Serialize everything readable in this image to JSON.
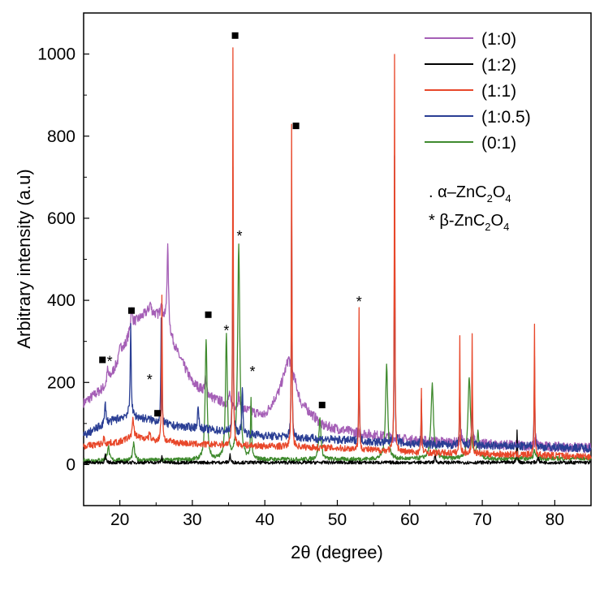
{
  "chart_data": {
    "type": "line",
    "xlabel": "2θ (degree)",
    "ylabel": "Arbitrary intensity (a.u)",
    "xlim": [
      15,
      85
    ],
    "ylim": [
      -100,
      1100
    ],
    "xticks": [
      20,
      30,
      40,
      50,
      60,
      70,
      80
    ],
    "yticks": [
      0,
      200,
      400,
      600,
      800,
      1000
    ],
    "grid": false,
    "legend_position": "top-right",
    "series": [
      {
        "name": "(1:0)",
        "color": "#a55fb6",
        "baseline": [
          [
            15,
            150
          ],
          [
            18,
            190
          ],
          [
            20,
            260
          ],
          [
            22,
            345
          ],
          [
            24,
            375
          ],
          [
            26,
            355
          ],
          [
            28,
            270
          ],
          [
            30,
            200
          ],
          [
            33,
            160
          ],
          [
            36,
            140
          ],
          [
            40,
            120
          ],
          [
            42,
            180
          ],
          [
            43.3,
            260
          ],
          [
            45,
            150
          ],
          [
            48,
            95
          ],
          [
            52,
            80
          ],
          [
            60,
            60
          ],
          [
            70,
            50
          ],
          [
            85,
            40
          ]
        ],
        "peaks": [
          [
            18.3,
            30,
            0.25
          ],
          [
            20.1,
            40,
            0.25
          ],
          [
            21.6,
            50,
            0.3
          ],
          [
            24.2,
            20,
            0.25
          ],
          [
            25.7,
            40,
            0.25
          ],
          [
            26.6,
            200,
            0.25
          ],
          [
            31.8,
            30,
            0.3
          ],
          [
            35.1,
            25,
            0.25
          ],
          [
            36.4,
            30,
            0.3
          ],
          [
            67.1,
            25,
            0.2
          ],
          [
            68.8,
            25,
            0.2
          ],
          [
            77.4,
            30,
            0.2
          ]
        ],
        "noise": 12
      },
      {
        "name": "(1:2)",
        "color": "#000000",
        "baseline": [
          [
            15,
            5
          ],
          [
            85,
            5
          ]
        ],
        "peaks": [
          [
            18.0,
            20,
            0.15
          ],
          [
            25.8,
            15,
            0.15
          ],
          [
            35.2,
            20,
            0.15
          ],
          [
            63.5,
            20,
            0.15
          ],
          [
            74.8,
            80,
            0.1
          ],
          [
            77.7,
            20,
            0.15
          ]
        ],
        "noise": 4
      },
      {
        "name": "(1:1)",
        "color": "#e8472a",
        "baseline": [
          [
            15,
            45
          ],
          [
            20,
            55
          ],
          [
            22,
            70
          ],
          [
            24,
            60
          ],
          [
            27,
            55
          ],
          [
            30,
            50
          ],
          [
            40,
            45
          ],
          [
            50,
            40
          ],
          [
            60,
            30
          ],
          [
            85,
            20
          ]
        ],
        "peaks": [
          [
            17.8,
            15,
            0.2
          ],
          [
            21.8,
            40,
            0.25
          ],
          [
            24.1,
            20,
            0.2
          ],
          [
            25.8,
            360,
            0.12
          ],
          [
            35.6,
            960,
            0.1
          ],
          [
            43.7,
            780,
            0.1
          ],
          [
            53.0,
            340,
            0.1
          ],
          [
            57.9,
            960,
            0.1
          ],
          [
            61.6,
            150,
            0.1
          ],
          [
            66.9,
            280,
            0.1
          ],
          [
            68.6,
            290,
            0.1
          ],
          [
            77.2,
            320,
            0.1
          ]
        ],
        "noise": 8
      },
      {
        "name": "(1:0.5)",
        "color": "#2a3e94",
        "baseline": [
          [
            15,
            70
          ],
          [
            18,
            100
          ],
          [
            21,
            120
          ],
          [
            24,
            110
          ],
          [
            27,
            95
          ],
          [
            30,
            90
          ],
          [
            35,
            80
          ],
          [
            40,
            70
          ],
          [
            45,
            65
          ],
          [
            50,
            60
          ],
          [
            60,
            50
          ],
          [
            85,
            40
          ]
        ],
        "peaks": [
          [
            18.0,
            50,
            0.2
          ],
          [
            21.5,
            230,
            0.15
          ],
          [
            25.7,
            250,
            0.12
          ],
          [
            30.8,
            50,
            0.2
          ],
          [
            35.6,
            650,
            0.1
          ],
          [
            36.9,
            120,
            0.15
          ],
          [
            43.7,
            630,
            0.1
          ],
          [
            53.0,
            230,
            0.1
          ],
          [
            57.9,
            700,
            0.1
          ],
          [
            61.6,
            110,
            0.1
          ],
          [
            66.9,
            170,
            0.1
          ],
          [
            68.6,
            180,
            0.1
          ],
          [
            77.2,
            230,
            0.1
          ]
        ],
        "noise": 10
      },
      {
        "name": "(0:1)",
        "color": "#3f8a2e",
        "baseline": [
          [
            15,
            10
          ],
          [
            85,
            15
          ]
        ],
        "peaks": [
          [
            18.4,
            35,
            0.3
          ],
          [
            21.9,
            40,
            0.3
          ],
          [
            31.9,
            295,
            0.3
          ],
          [
            34.7,
            300,
            0.3
          ],
          [
            36.4,
            520,
            0.35
          ],
          [
            38.1,
            150,
            0.15
          ],
          [
            47.6,
            100,
            0.35
          ],
          [
            56.8,
            230,
            0.35
          ],
          [
            63.1,
            180,
            0.4
          ],
          [
            68.2,
            200,
            0.4
          ],
          [
            69.4,
            60,
            0.3
          ],
          [
            77.2,
            20,
            0.3
          ]
        ],
        "noise": 5
      }
    ],
    "annotations": [
      {
        "symbol": "■",
        "x": 17.6,
        "y": 255
      },
      {
        "symbol": "*",
        "x": 18.6,
        "y": 255
      },
      {
        "symbol": "■",
        "x": 21.6,
        "y": 375
      },
      {
        "symbol": "*",
        "x": 24.1,
        "y": 210
      },
      {
        "symbol": "■",
        "x": 25.2,
        "y": 125
      },
      {
        "symbol": "■",
        "x": 32.2,
        "y": 365
      },
      {
        "symbol": "*",
        "x": 34.7,
        "y": 330
      },
      {
        "symbol": "*",
        "x": 36.5,
        "y": 560
      },
      {
        "symbol": "■",
        "x": 35.9,
        "y": 1045
      },
      {
        "symbol": "*",
        "x": 38.3,
        "y": 230
      },
      {
        "symbol": "■",
        "x": 44.3,
        "y": 825
      },
      {
        "symbol": "■",
        "x": 47.9,
        "y": 145
      },
      {
        "symbol": "*",
        "x": 53.0,
        "y": 400
      }
    ]
  },
  "legend_notes": [
    {
      "prefix": ". ",
      "text": "α–ZnC",
      "sub1": "2",
      "mid": "O",
      "sub2": "4"
    },
    {
      "prefix": "* ",
      "text": "β-ZnC",
      "sub1": "2",
      "mid": "O",
      "sub2": "4"
    }
  ]
}
